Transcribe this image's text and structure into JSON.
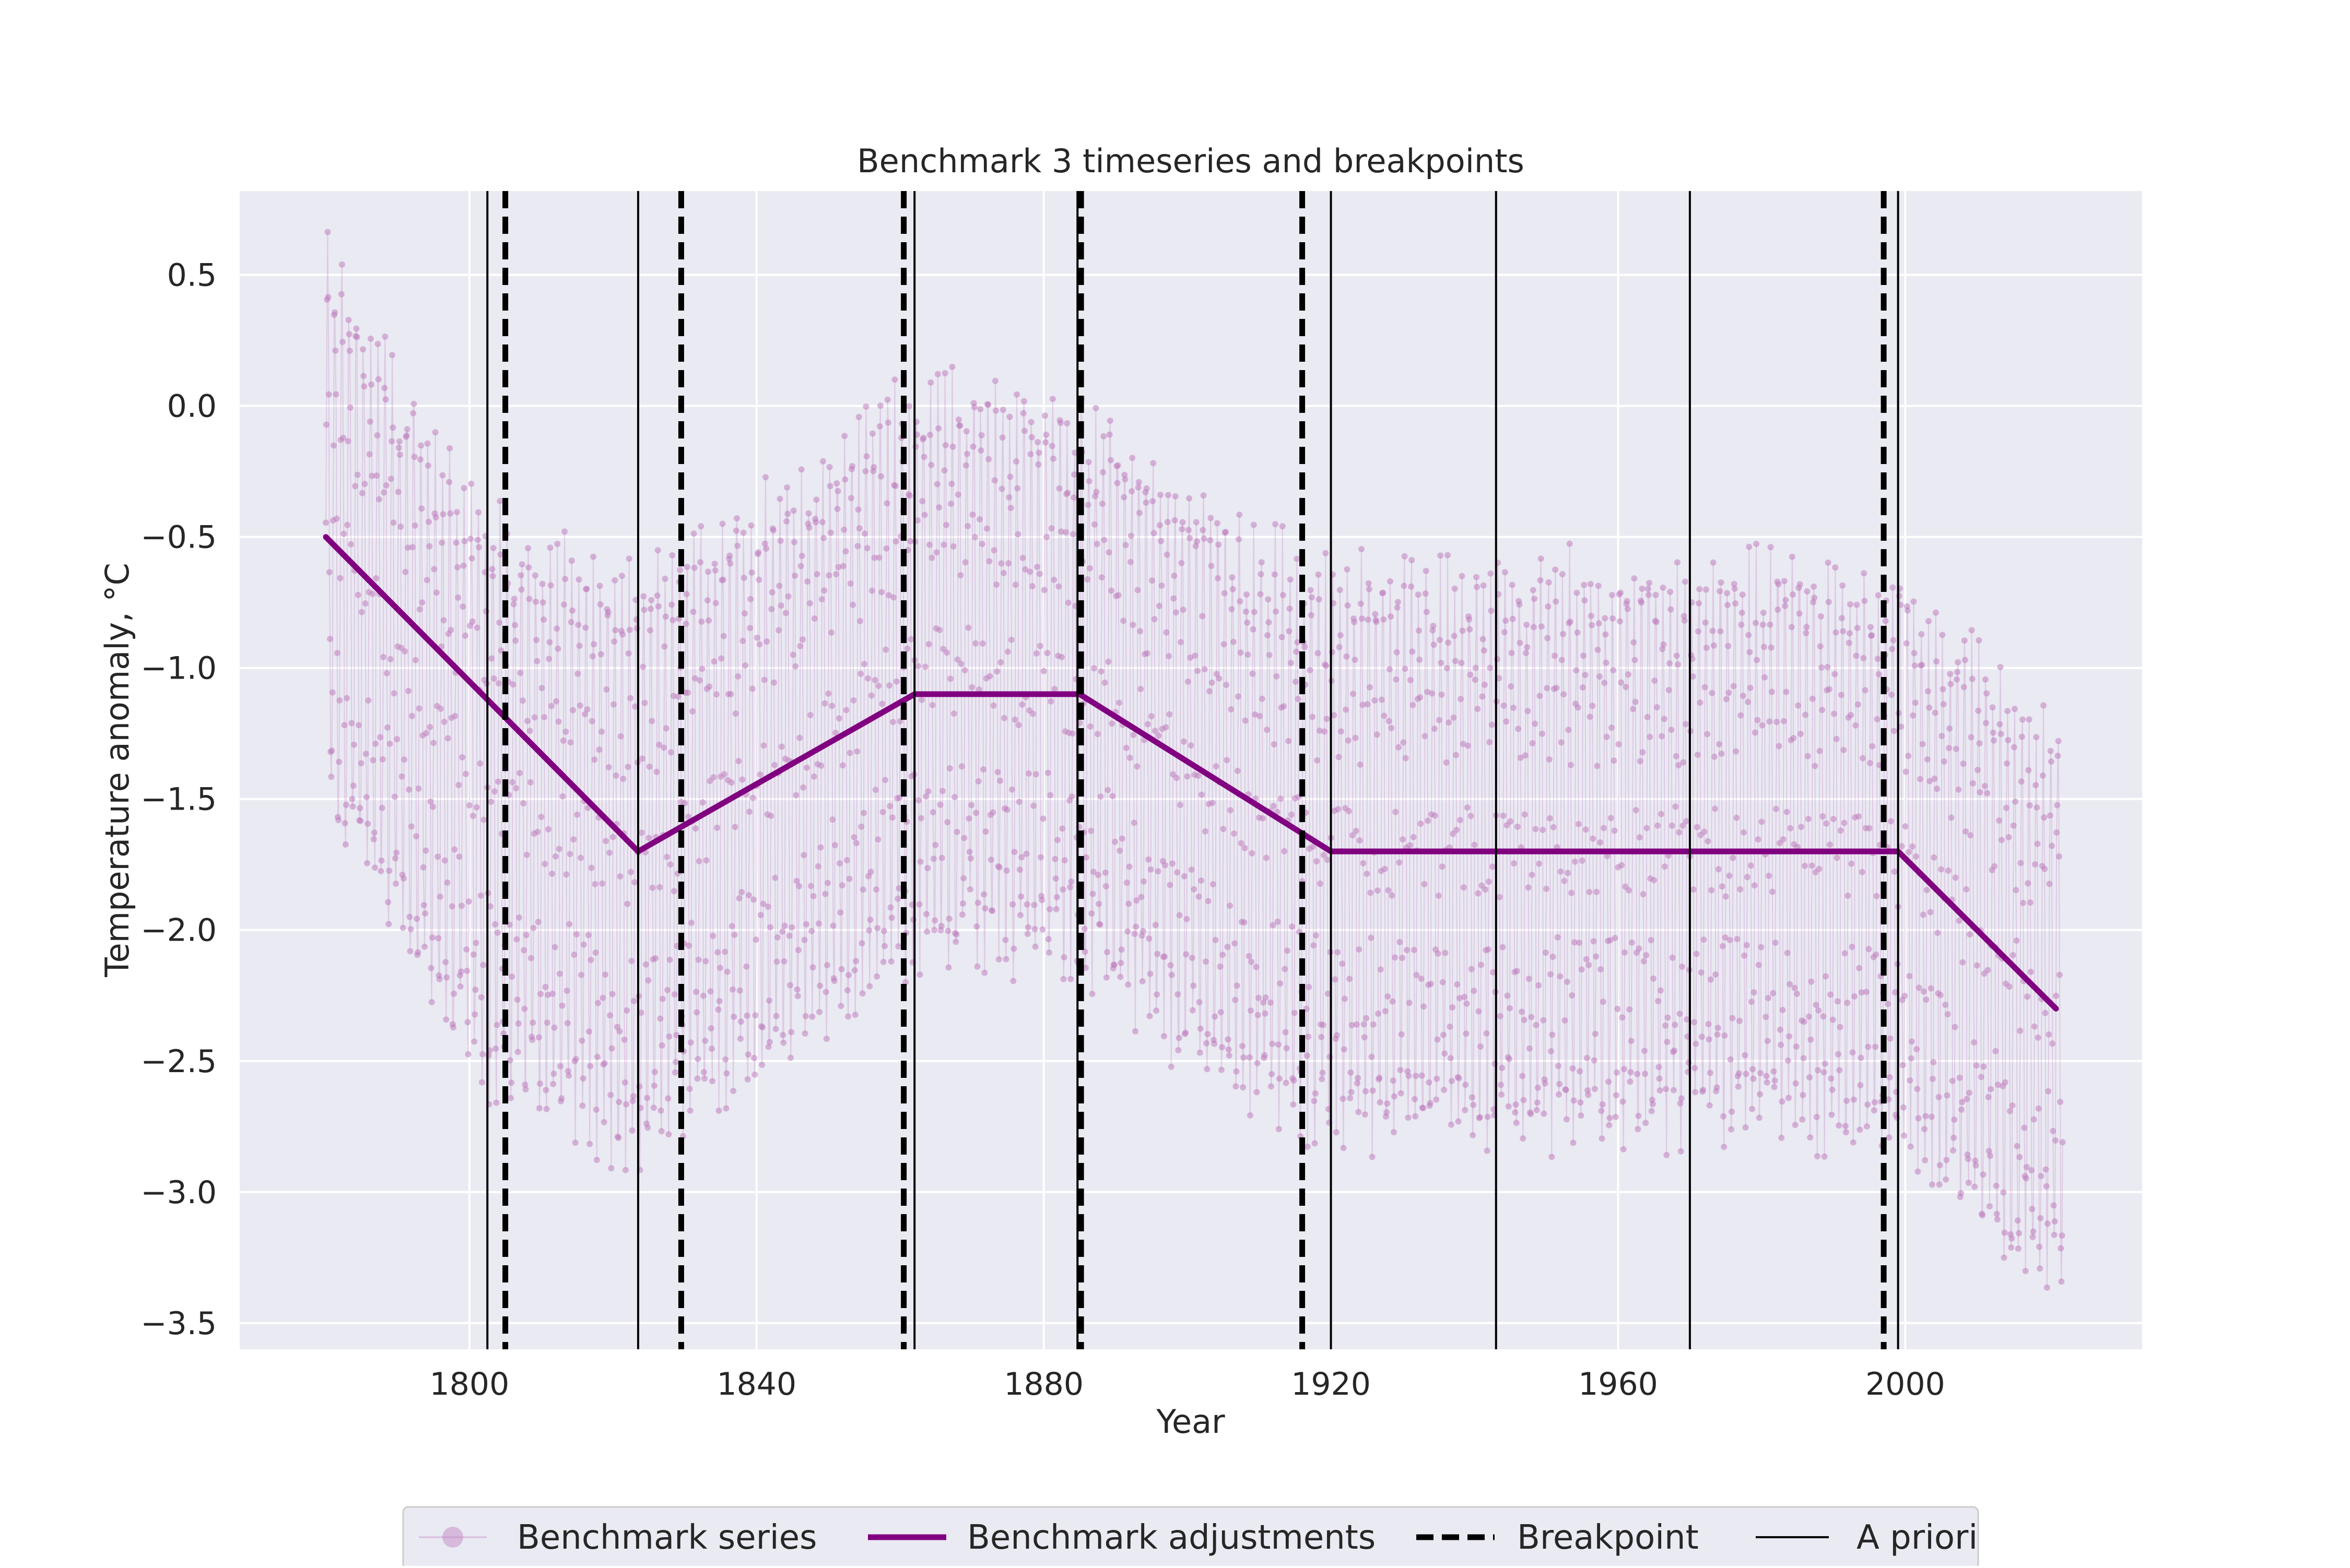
{
  "chart_data": {
    "type": "line",
    "title": "Benchmark 3 timeseries and breakpoints",
    "xlabel": "Year",
    "ylabel": "Temperature anomaly, °C",
    "xlim": [
      1768,
      2033
    ],
    "ylim": [
      -3.6,
      0.82
    ],
    "xticks": [
      1800,
      1840,
      1880,
      1920,
      1960,
      2000
    ],
    "yticks": [
      0.5,
      0.0,
      -0.5,
      -1.0,
      -1.5,
      -2.0,
      -2.5,
      -3.0,
      -3.5
    ],
    "xtick_labels": [
      "1800",
      "1840",
      "1880",
      "1920",
      "1960",
      "2000"
    ],
    "ytick_labels": [
      "0.5",
      "0.0",
      "−0.5",
      "−1.0",
      "−1.5",
      "−2.0",
      "−2.5",
      "−3.0",
      "−3.5"
    ],
    "grid": true,
    "background": "#EAEAF2",
    "legend_position": "bottom-center",
    "colors": {
      "series": "#BF7FBF",
      "adjustments": "#800080",
      "breakpoint": "#000000",
      "a_priori": "#000000"
    },
    "series": [
      {
        "name": "Benchmark series",
        "style": "monthly markers with thin stems",
        "start_year": 1780,
        "end_year": 2021,
        "seasonal_amplitude": 1.0,
        "samples": [
          [
            1780,
            -0.5
          ],
          [
            1785,
            -0.7
          ],
          [
            1790,
            -0.95
          ],
          [
            1795,
            -1.2
          ],
          [
            1800,
            -1.45
          ],
          [
            1805,
            -1.55
          ],
          [
            1810,
            -1.6
          ],
          [
            1815,
            -1.65
          ],
          [
            1820,
            -1.75
          ],
          [
            1825,
            -1.75
          ],
          [
            1830,
            -1.65
          ],
          [
            1835,
            -1.55
          ],
          [
            1840,
            -1.45
          ],
          [
            1845,
            -1.35
          ],
          [
            1850,
            -1.25
          ],
          [
            1855,
            -1.15
          ],
          [
            1860,
            -1.05
          ],
          [
            1865,
            -1.0
          ],
          [
            1870,
            -1.0
          ],
          [
            1875,
            -1.05
          ],
          [
            1880,
            -1.05
          ],
          [
            1885,
            -1.1
          ],
          [
            1890,
            -1.15
          ],
          [
            1895,
            -1.3
          ],
          [
            1900,
            -1.4
          ],
          [
            1905,
            -1.5
          ],
          [
            1910,
            -1.6
          ],
          [
            1915,
            -1.65
          ],
          [
            1920,
            -1.7
          ],
          [
            1940,
            -1.7
          ],
          [
            1960,
            -1.7
          ],
          [
            1980,
            -1.7
          ],
          [
            2000,
            -1.75
          ],
          [
            2005,
            -1.9
          ],
          [
            2010,
            -2.05
          ],
          [
            2015,
            -2.2
          ],
          [
            2021,
            -2.3
          ]
        ]
      },
      {
        "name": "Benchmark adjustments",
        "style": "solid thick line",
        "points": [
          [
            1780,
            -0.5
          ],
          [
            1823.5,
            -1.7
          ],
          [
            1862,
            -1.1
          ],
          [
            1885,
            -1.1
          ],
          [
            1920,
            -1.7
          ],
          [
            1999,
            -1.7
          ],
          [
            2021,
            -2.3
          ]
        ]
      }
    ],
    "breakpoints": {
      "name": "Breakpoint",
      "style": "dashed thick vertical",
      "years": [
        1805,
        1829.5,
        1860.5,
        1885.2,
        1916,
        1997
      ]
    },
    "a_priori": {
      "name": "A priori",
      "style": "solid thin vertical",
      "years": [
        1802.5,
        1823.5,
        1862,
        1884.7,
        1920,
        1943,
        1970,
        1999
      ]
    },
    "legend": [
      {
        "label": "Benchmark series",
        "kind": "marker"
      },
      {
        "label": "Benchmark adjustments",
        "kind": "line"
      },
      {
        "label": "Breakpoint",
        "kind": "dashed"
      },
      {
        "label": "A priori",
        "kind": "thin"
      }
    ]
  }
}
